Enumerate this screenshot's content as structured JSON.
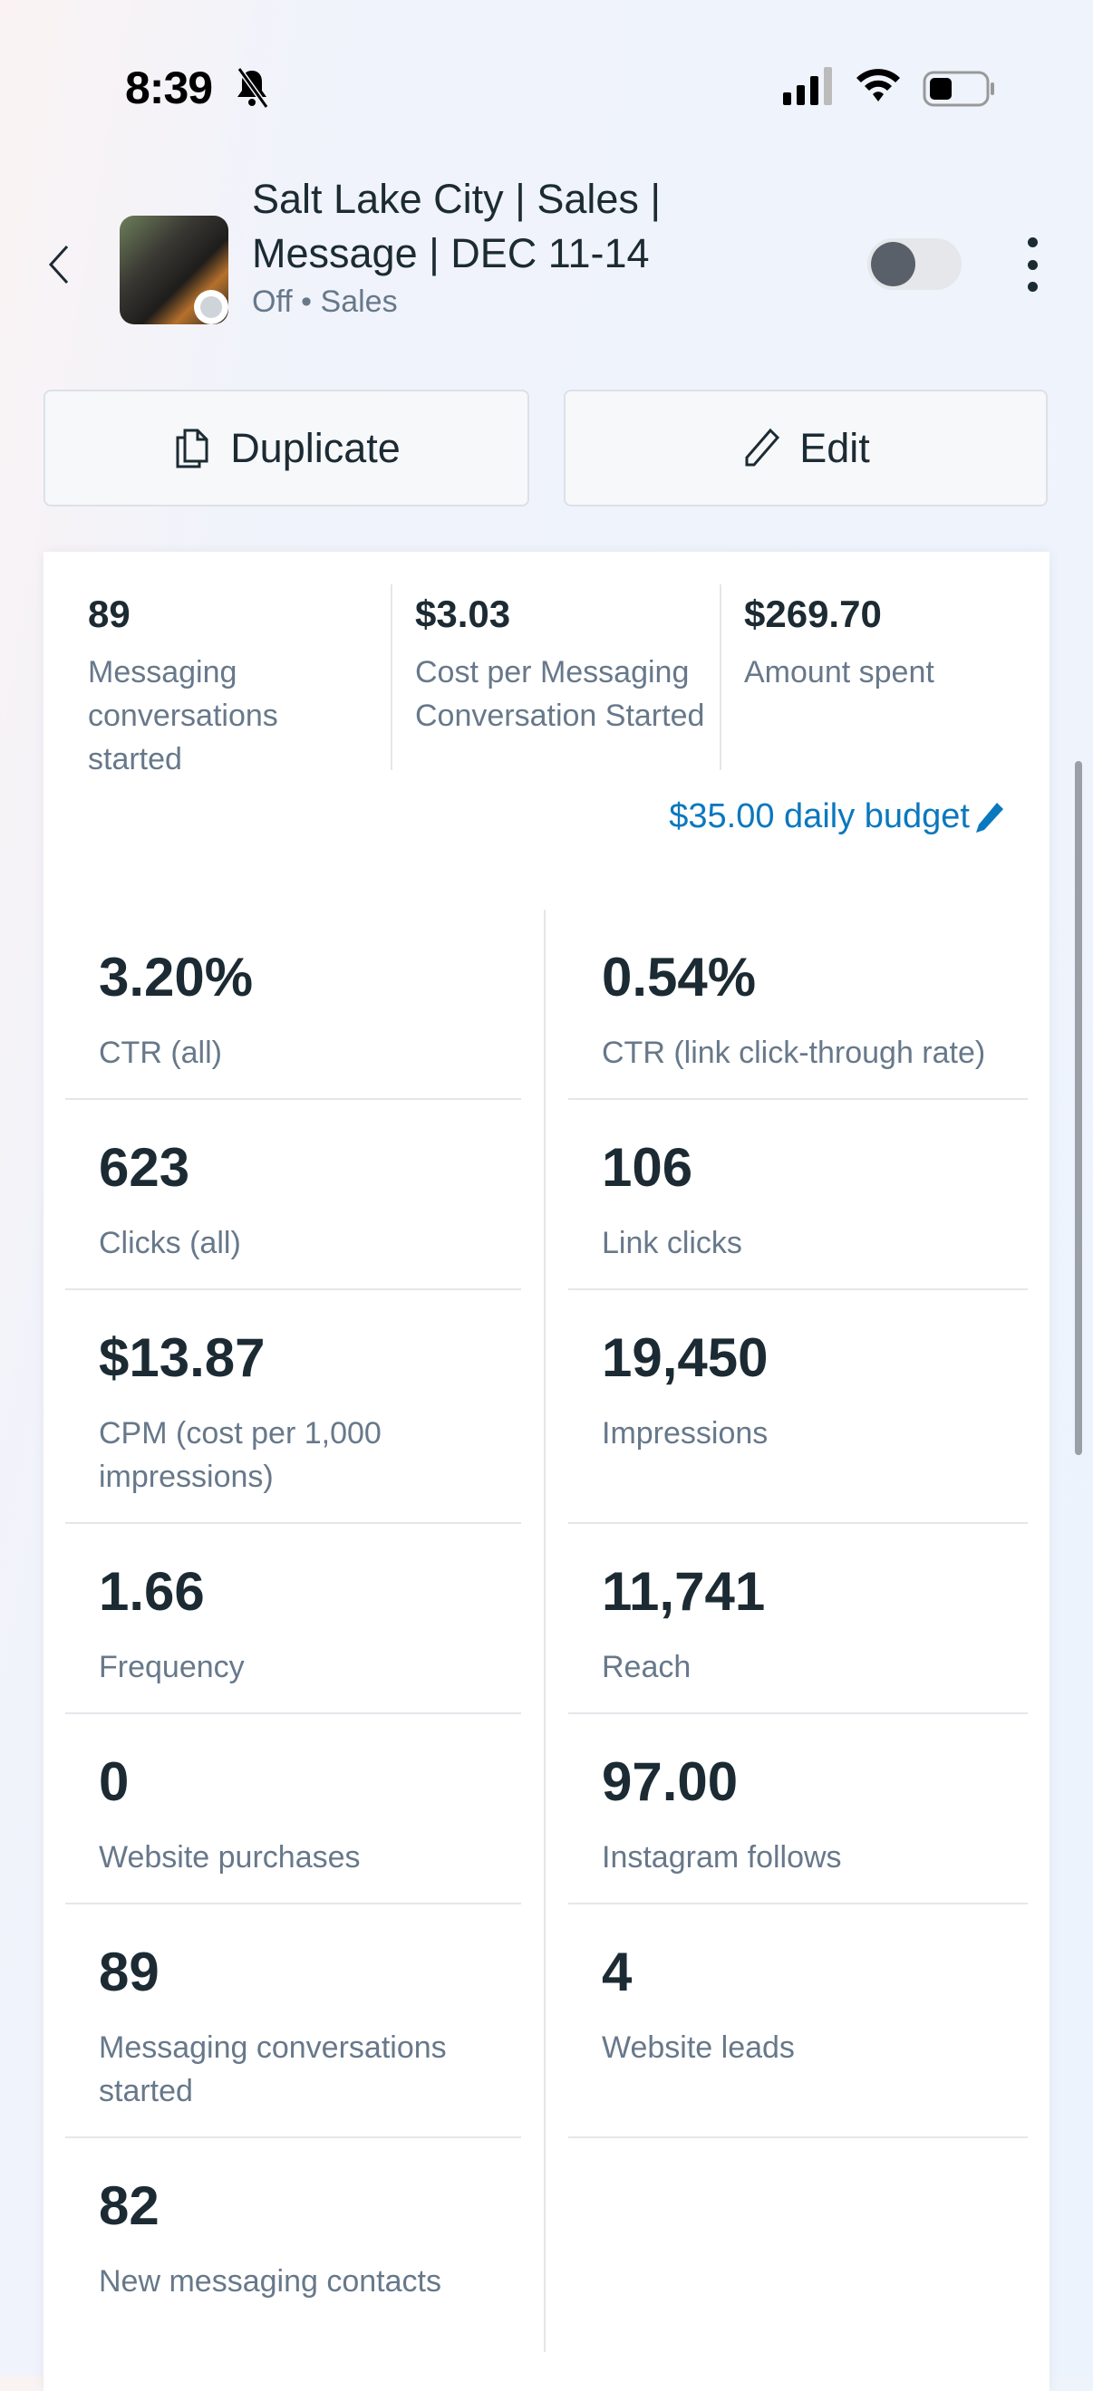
{
  "status_bar": {
    "time": "8:39"
  },
  "header": {
    "title": "Salt Lake City | Sales | Message | DEC 11-14",
    "status": "Off",
    "objective": "Sales",
    "toggle_on": false
  },
  "actions": {
    "duplicate": "Duplicate",
    "edit": "Edit"
  },
  "summary": [
    {
      "value": "89",
      "label": "Messaging conversations started"
    },
    {
      "value": "$3.03",
      "label": "Cost per Messaging Conversation Started"
    },
    {
      "value": "$269.70",
      "label": "Amount spent"
    }
  ],
  "budget": "$35.00 daily budget",
  "metrics": [
    {
      "value": "3.20%",
      "label": "CTR (all)"
    },
    {
      "value": "0.54%",
      "label": "CTR (link click-through rate)"
    },
    {
      "value": "623",
      "label": "Clicks (all)"
    },
    {
      "value": "106",
      "label": "Link clicks"
    },
    {
      "value": "$13.87",
      "label": "CPM (cost per 1,000 impressions)"
    },
    {
      "value": "19,450",
      "label": "Impressions"
    },
    {
      "value": "1.66",
      "label": "Frequency"
    },
    {
      "value": "11,741",
      "label": "Reach"
    },
    {
      "value": "0",
      "label": "Website purchases"
    },
    {
      "value": "97.00",
      "label": "Instagram follows"
    },
    {
      "value": "89",
      "label": "Messaging conversations started"
    },
    {
      "value": "4",
      "label": "Website leads"
    },
    {
      "value": "82",
      "label": "New messaging contacts"
    }
  ]
}
